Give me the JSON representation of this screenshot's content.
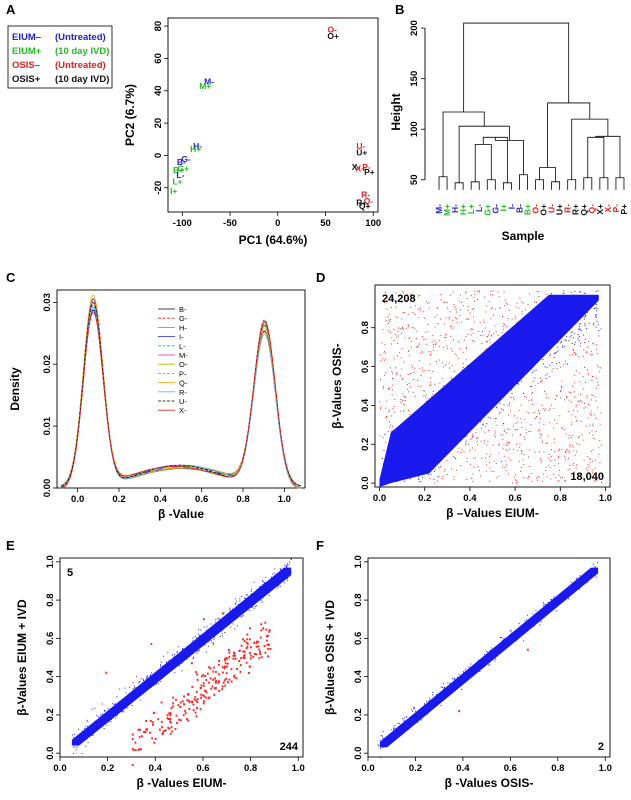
{
  "colors": {
    "blue": "#2020d0",
    "green": "#22bb22",
    "red": "#e02020",
    "black": "#111111",
    "density_palette": [
      "#000000",
      "#e02020",
      "#22bb22",
      "#2020d0",
      "#00bbbb",
      "#cc22cc",
      "#bbbb00",
      "#888888",
      "#ff9900",
      "#66aaff"
    ]
  },
  "panels": {
    "A": "A",
    "B": "B",
    "C": "C",
    "D": "D",
    "E": "E",
    "F": "F"
  },
  "chart_data": [
    {
      "panel": "A",
      "type": "scatter",
      "xlabel": "PC1 (64.6%)",
      "ylabel": "PC2 (6.7%)",
      "xlim": [
        -115,
        105
      ],
      "ylim": [
        -35,
        85
      ],
      "xticks": [
        -100,
        -50,
        0,
        50,
        100
      ],
      "yticks": [
        -20,
        0,
        20,
        40,
        60,
        80
      ],
      "legend": [
        {
          "label": "EIUM–",
          "note": "(Untreated)",
          "color": "blue"
        },
        {
          "label": "EIUM+",
          "note": "(10 day IVD)",
          "color": "green"
        },
        {
          "label": "OSIS–",
          "note": "(Untreated)",
          "color": "red"
        },
        {
          "label": "OSIS+",
          "note": "(10 day IVD)",
          "color": "black"
        }
      ],
      "points": [
        {
          "label": "O-",
          "x": 57,
          "y": 76,
          "color": "red"
        },
        {
          "label": "O+",
          "x": 58,
          "y": 72,
          "color": "black"
        },
        {
          "label": "M-",
          "x": -72,
          "y": 44,
          "color": "blue"
        },
        {
          "label": "M+",
          "x": -76,
          "y": 41,
          "color": "green"
        },
        {
          "label": "H-",
          "x": -84,
          "y": 4,
          "color": "blue"
        },
        {
          "label": "H+",
          "x": -86,
          "y": 2,
          "color": "green"
        },
        {
          "label": "B-",
          "x": -101,
          "y": -6,
          "color": "blue"
        },
        {
          "label": "G-",
          "x": -96,
          "y": -4,
          "color": "blue"
        },
        {
          "label": "B+",
          "x": -104,
          "y": -11,
          "color": "green"
        },
        {
          "label": "G+",
          "x": -99,
          "y": -10,
          "color": "green"
        },
        {
          "label": "L-",
          "x": -102,
          "y": -14,
          "color": "blue"
        },
        {
          "label": "L+",
          "x": -105,
          "y": -18,
          "color": "green"
        },
        {
          "label": "I+",
          "x": -109,
          "y": -24,
          "color": "green"
        },
        {
          "label": "U-",
          "x": 87,
          "y": 4,
          "color": "red"
        },
        {
          "label": "U+",
          "x": 88,
          "y": 0,
          "color": "black"
        },
        {
          "label": "X-",
          "x": 82,
          "y": -9,
          "color": "black"
        },
        {
          "label": "P-",
          "x": 93,
          "y": -9,
          "color": "red"
        },
        {
          "label": "X+",
          "x": 87,
          "y": -10,
          "color": "red"
        },
        {
          "label": "P+",
          "x": 96,
          "y": -12,
          "color": "black"
        },
        {
          "label": "R-",
          "x": 92,
          "y": -26,
          "color": "red"
        },
        {
          "label": "R+",
          "x": 88,
          "y": -31,
          "color": "black"
        },
        {
          "label": "Q-",
          "x": 95,
          "y": -30,
          "color": "red"
        },
        {
          "label": "Q+",
          "x": 91,
          "y": -33,
          "color": "black"
        }
      ]
    },
    {
      "panel": "B",
      "type": "dendrogram",
      "ylabel": "Height",
      "xlabel": "Sample",
      "ylim": [
        30,
        210
      ],
      "yticks": [
        50,
        100,
        150,
        200
      ],
      "leaves": [
        {
          "label": "M-",
          "color": "blue"
        },
        {
          "label": "M+",
          "color": "green"
        },
        {
          "label": "H-",
          "color": "blue"
        },
        {
          "label": "H+",
          "color": "green"
        },
        {
          "label": "L+",
          "color": "green"
        },
        {
          "label": "L-",
          "color": "blue"
        },
        {
          "label": "G+",
          "color": "green"
        },
        {
          "label": "G-",
          "color": "blue"
        },
        {
          "label": "I+",
          "color": "green"
        },
        {
          "label": "I-",
          "color": "blue"
        },
        {
          "label": "B-",
          "color": "blue"
        },
        {
          "label": "B+",
          "color": "green"
        },
        {
          "label": "O-",
          "color": "red"
        },
        {
          "label": "O+",
          "color": "black"
        },
        {
          "label": "U-",
          "color": "red"
        },
        {
          "label": "U+",
          "color": "black"
        },
        {
          "label": "R-",
          "color": "red"
        },
        {
          "label": "R+",
          "color": "black"
        },
        {
          "label": "Q+",
          "color": "black"
        },
        {
          "label": "Q-",
          "color": "red"
        },
        {
          "label": "X+",
          "color": "black"
        },
        {
          "label": "X-",
          "color": "red"
        },
        {
          "label": "P-",
          "color": "red"
        },
        {
          "label": "P+",
          "color": "black"
        }
      ],
      "merges": [
        [
          0,
          1,
          53
        ],
        [
          2,
          3,
          47
        ],
        [
          4,
          5,
          48
        ],
        [
          6,
          7,
          50
        ],
        [
          8,
          9,
          47
        ],
        [
          10,
          11,
          55
        ],
        [
          12,
          13,
          50
        ],
        [
          14,
          15,
          48
        ],
        [
          16,
          17,
          50
        ],
        [
          18,
          19,
          52
        ],
        [
          20,
          21,
          52
        ],
        [
          22,
          23,
          52
        ]
      ]
    },
    {
      "panel": "C",
      "type": "line",
      "xlabel": "β -Value",
      "ylabel": "Density",
      "xlim": [
        -0.1,
        1.1
      ],
      "ylim": [
        0,
        0.032
      ],
      "xticks": [
        0.0,
        0.2,
        0.4,
        0.6,
        0.8,
        1.0
      ],
      "yticks": [
        0.0,
        0.01,
        0.02,
        0.03
      ],
      "legend_placement": "top-center",
      "series_names": [
        "B-",
        "G-",
        "H-",
        "I-",
        "L-",
        "M-",
        "O-",
        "P-",
        "Q-",
        "R-",
        "U-",
        "X-"
      ]
    },
    {
      "panel": "D",
      "type": "scatter",
      "xlabel": "β –Values EIUM-",
      "ylabel": "β-Values OSIS-",
      "xlim": [
        -0.02,
        1.02
      ],
      "ylim": [
        -0.02,
        1.02
      ],
      "xticks": [
        0.0,
        0.2,
        0.4,
        0.6,
        0.8,
        1.0
      ],
      "yticks": [
        0.0,
        0.2,
        0.4,
        0.6,
        0.8
      ],
      "count_upper": "24,208",
      "count_lower": "18,040"
    },
    {
      "panel": "E",
      "type": "scatter",
      "xlabel": "β -Values EIUM-",
      "ylabel": "β-Values EIUM + IVD",
      "xlim": [
        0,
        1.02
      ],
      "ylim": [
        -0.02,
        1.02
      ],
      "xticks": [
        0.0,
        0.2,
        0.4,
        0.6,
        0.8,
        1.0
      ],
      "yticks": [
        0.0,
        0.2,
        0.4,
        0.6,
        0.8,
        1.0
      ],
      "count_upper": "5",
      "count_lower": "244"
    },
    {
      "panel": "F",
      "type": "scatter",
      "xlabel": "β -Values OSIS-",
      "ylabel": "β-Values OSIS + IVD",
      "xlim": [
        0,
        1.02
      ],
      "ylim": [
        -0.02,
        1.02
      ],
      "xticks": [
        0.0,
        0.2,
        0.4,
        0.6,
        0.8,
        1.0
      ],
      "yticks": [
        0.0,
        0.2,
        0.4,
        0.6,
        0.8,
        1.0
      ],
      "count_lower": "2"
    }
  ]
}
